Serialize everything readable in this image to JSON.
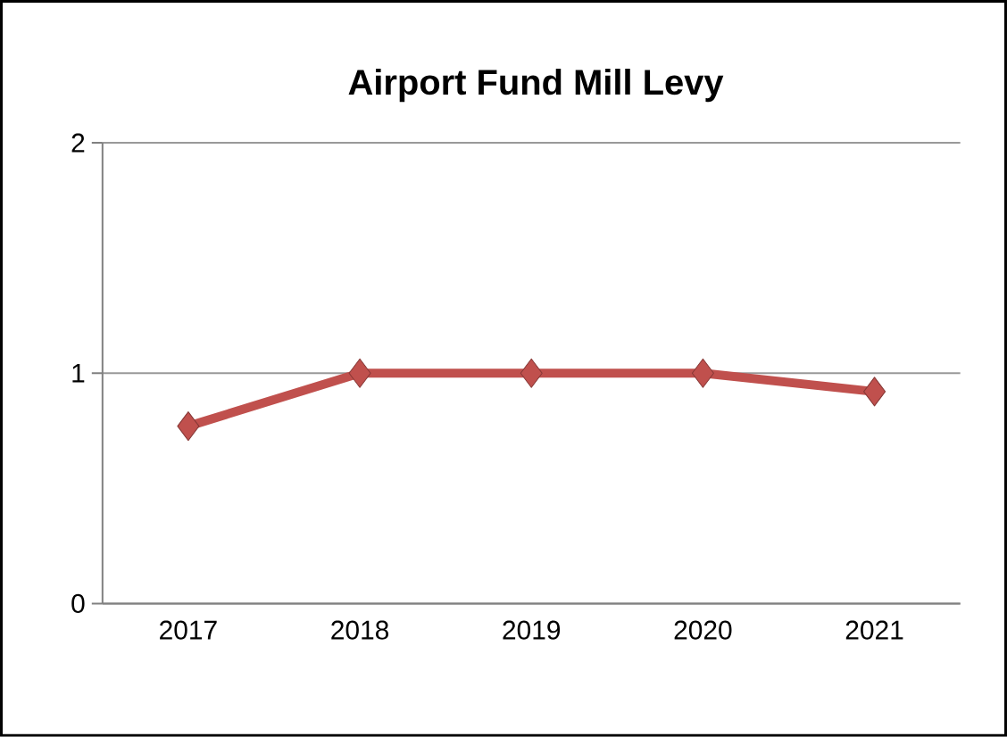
{
  "chart_data": {
    "type": "line",
    "title": "Airport Fund Mill Levy",
    "categories": [
      "2017",
      "2018",
      "2019",
      "2020",
      "2021"
    ],
    "series": [
      {
        "color": "#c0504d",
        "values": [
          0.77,
          1,
          1,
          1,
          0.92
        ]
      }
    ],
    "ylim": [
      0,
      2
    ],
    "yticks": [
      0,
      1,
      2
    ],
    "grid": "y",
    "marker": "diamond",
    "line_style": "solid"
  }
}
